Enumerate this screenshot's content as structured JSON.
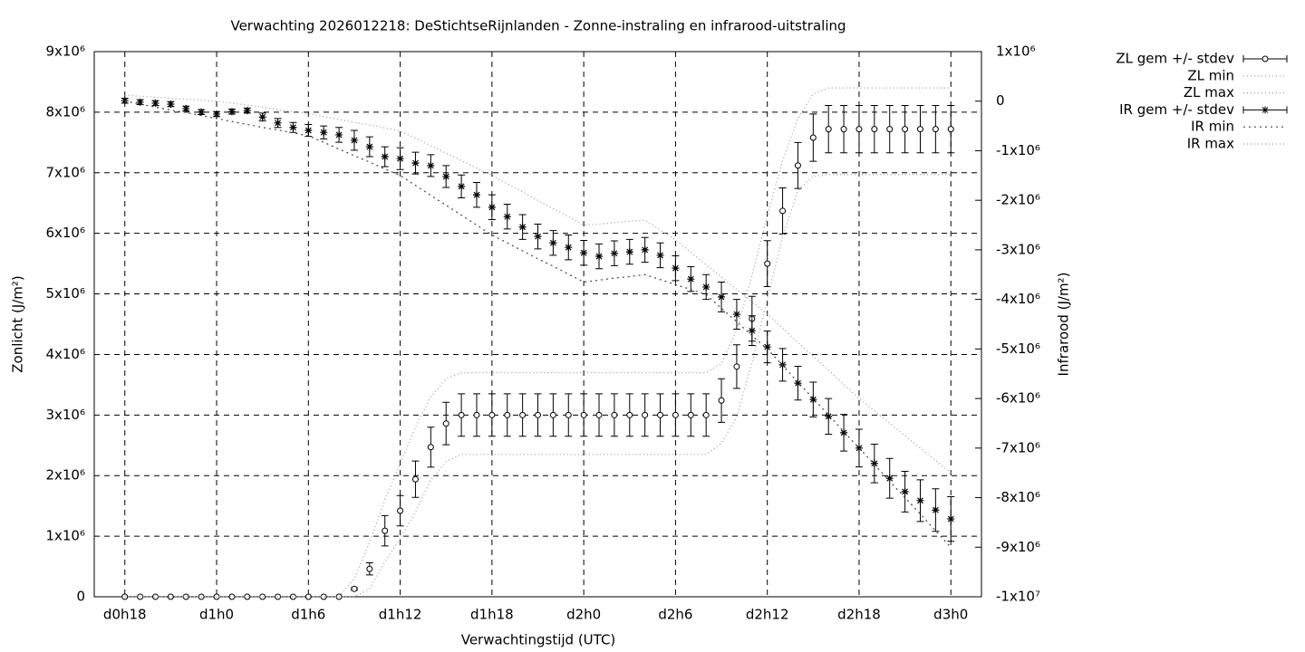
{
  "chart_data": {
    "type": "errorbar",
    "title": "Verwachting 2026012218: DeStichtseRijnlanden - Zonne-instraling en infrarood-uitstraling",
    "x_label": "Verwachtingstijd (UTC)",
    "y_label": "Zonlicht (J/m²)",
    "y2_label": "Infrarood (J/m²)",
    "x": [
      18,
      19,
      20,
      21,
      22,
      23,
      24,
      25,
      26,
      27,
      28,
      29,
      30,
      31,
      32,
      33,
      34,
      35,
      36,
      37,
      38,
      39,
      40,
      41,
      42,
      43,
      44,
      45,
      46,
      47,
      48,
      49,
      50,
      51,
      52,
      53,
      54,
      55,
      56,
      57,
      58,
      59,
      60,
      61,
      62,
      63,
      64,
      65,
      66,
      67,
      68,
      69,
      70,
      71,
      72
    ],
    "xlim": [
      16,
      74
    ],
    "xticks": [
      {
        "value": 18,
        "label": "d0h18"
      },
      {
        "value": 24,
        "label": "d1h0"
      },
      {
        "value": 30,
        "label": "d1h6"
      },
      {
        "value": 36,
        "label": "d1h12"
      },
      {
        "value": 42,
        "label": "d1h18"
      },
      {
        "value": 48,
        "label": "d2h0"
      },
      {
        "value": 54,
        "label": "d2h6"
      },
      {
        "value": 60,
        "label": "d2h12"
      },
      {
        "value": 66,
        "label": "d2h18"
      },
      {
        "value": 72,
        "label": "d3h0"
      }
    ],
    "ylim": [
      0,
      9000000.0
    ],
    "yticks": [
      0,
      {
        "value": 1000000.0,
        "label": "1x10⁶"
      },
      {
        "value": 2000000.0,
        "label": "2x10⁶"
      },
      {
        "value": 3000000.0,
        "label": "3x10⁶"
      },
      {
        "value": 4000000.0,
        "label": "4x10⁶"
      },
      {
        "value": 5000000.0,
        "label": "5x10⁶"
      },
      {
        "value": 6000000.0,
        "label": "6x10⁶"
      },
      {
        "value": 7000000.0,
        "label": "7x10⁶"
      },
      {
        "value": 8000000.0,
        "label": "8x10⁶"
      },
      {
        "value": 9000000.0,
        "label": "9x10⁶"
      }
    ],
    "y2lim": [
      -10000000.0,
      1000000.0
    ],
    "y2ticks": [
      {
        "value": -10000000.0,
        "label": "-1x10⁷"
      },
      {
        "value": -9000000.0,
        "label": "-9x10⁶"
      },
      {
        "value": -8000000.0,
        "label": "-8x10⁶"
      },
      {
        "value": -7000000.0,
        "label": "-7x10⁶"
      },
      {
        "value": -6000000.0,
        "label": "-6x10⁶"
      },
      {
        "value": -5000000.0,
        "label": "-5x10⁶"
      },
      {
        "value": -4000000.0,
        "label": "-4x10⁶"
      },
      {
        "value": -3000000.0,
        "label": "-3x10⁶"
      },
      {
        "value": -2000000.0,
        "label": "-2x10⁶"
      },
      {
        "value": -1000000.0,
        "label": "-1x10⁶"
      },
      0,
      {
        "value": 1000000.0,
        "label": "1x10⁶"
      }
    ],
    "grid": true,
    "legend": "outside-top-right",
    "series": [
      {
        "name": "ZL gem +/- stdev",
        "color": "#000000",
        "axis": "y",
        "marker": "circle",
        "values": [
          0,
          0,
          0,
          0,
          0,
          0,
          0,
          0,
          0,
          0,
          0,
          0,
          0,
          0,
          0,
          130000.0,
          460000.0,
          1090000.0,
          1420000.0,
          1940000.0,
          2470000.0,
          2860000.0,
          3000000.0,
          3000000.0,
          3000000.0,
          3000000.0,
          3000000.0,
          3000000.0,
          3000000.0,
          3000000.0,
          3000000.0,
          3000000.0,
          3000000.0,
          3000000.0,
          3000000.0,
          3000000.0,
          3000000.0,
          3000000.0,
          3000000.0,
          3240000.0,
          3800000.0,
          4590000.0,
          5500000.0,
          6370000.0,
          7120000.0,
          7580000.0,
          7720000.0,
          7720000.0,
          7720000.0,
          7720000.0,
          7720000.0,
          7720000.0,
          7720000.0,
          7720000.0,
          7720000.0
        ],
        "errors": [
          0,
          0,
          0,
          0,
          0,
          0,
          0,
          0,
          0,
          0,
          0,
          0,
          0,
          0,
          0,
          20000.0,
          100000.0,
          250000.0,
          250000.0,
          300000.0,
          330000.0,
          350000.0,
          350000.0,
          350000.0,
          350000.0,
          350000.0,
          350000.0,
          350000.0,
          350000.0,
          350000.0,
          350000.0,
          350000.0,
          350000.0,
          350000.0,
          350000.0,
          350000.0,
          350000.0,
          350000.0,
          350000.0,
          360000.0,
          360000.0,
          370000.0,
          380000.0,
          380000.0,
          380000.0,
          390000.0,
          390000.0,
          390000.0,
          390000.0,
          390000.0,
          390000.0,
          390000.0,
          390000.0,
          390000.0,
          390000.0
        ]
      },
      {
        "name": "ZL min",
        "color": "#999999",
        "axis": "y",
        "style": "dotted",
        "values": [
          0,
          0,
          0,
          0,
          0,
          0,
          0,
          0,
          0,
          0,
          0,
          0,
          0,
          0,
          0,
          0,
          130000.0,
          580000.0,
          960000.0,
          1400000.0,
          1930000.0,
          2230000.0,
          2350000.0,
          2350000.0,
          2350000.0,
          2350000.0,
          2350000.0,
          2350000.0,
          2350000.0,
          2350000.0,
          2350000.0,
          2350000.0,
          2350000.0,
          2350000.0,
          2350000.0,
          2350000.0,
          2350000.0,
          2350000.0,
          2350000.0,
          2530000.0,
          2970000.0,
          3870000.0,
          4920000.0,
          5940000.0,
          6710000.0,
          6940000.0,
          6970000.0,
          6970000.0,
          6970000.0,
          6970000.0,
          6970000.0,
          6970000.0,
          6970000.0,
          6970000.0,
          6970000.0
        ]
      },
      {
        "name": "ZL max",
        "color": "#999999",
        "axis": "y",
        "style": "dotted",
        "values": [
          0,
          0,
          0,
          0,
          0,
          0,
          0,
          0,
          0,
          0,
          0,
          0,
          0,
          0,
          0,
          300000.0,
          900000.0,
          1600000.0,
          2200000.0,
          2800000.0,
          3300000.0,
          3600000.0,
          3700000.0,
          3700000.0,
          3700000.0,
          3700000.0,
          3700000.0,
          3700000.0,
          3700000.0,
          3700000.0,
          3700000.0,
          3700000.0,
          3700000.0,
          3700000.0,
          3700000.0,
          3700000.0,
          3700000.0,
          3700000.0,
          3700000.0,
          3850000.0,
          4400000.0,
          5300000.0,
          6300000.0,
          7200000.0,
          7900000.0,
          8300000.0,
          8400000.0,
          8400000.0,
          8400000.0,
          8400000.0,
          8400000.0,
          8400000.0,
          8400000.0,
          8400000.0,
          8400000.0
        ]
      },
      {
        "name": "IR gem +/- stdev",
        "color": "#000000",
        "axis": "y2",
        "marker": "star",
        "values": [
          10000.0,
          -20000.0,
          -40000.0,
          -60000.0,
          -150000.0,
          -220000.0,
          -260000.0,
          -210000.0,
          -190000.0,
          -320000.0,
          -440000.0,
          -530000.0,
          -590000.0,
          -630000.0,
          -680000.0,
          -790000.0,
          -920000.0,
          -1120000.0,
          -1160000.0,
          -1250000.0,
          -1300000.0,
          -1520000.0,
          -1720000.0,
          -1890000.0,
          -2140000.0,
          -2330000.0,
          -2540000.0,
          -2730000.0,
          -2860000.0,
          -2950000.0,
          -3060000.0,
          -3130000.0,
          -3070000.0,
          -3040000.0,
          -3000000.0,
          -3110000.0,
          -3370000.0,
          -3590000.0,
          -3750000.0,
          -3950000.0,
          -4300000.0,
          -4630000.0,
          -4960000.0,
          -5320000.0,
          -5690000.0,
          -6020000.0,
          -6360000.0,
          -6690000.0,
          -7000000.0,
          -7310000.0,
          -7610000.0,
          -7880000.0,
          -8060000.0,
          -8250000.0,
          -8430000.0
        ],
        "errors": [
          50000.0,
          50000.0,
          50000.0,
          50000.0,
          50000.0,
          50000.0,
          50000.0,
          50000.0,
          50000.0,
          80000.0,
          90000.0,
          100000.0,
          120000.0,
          130000.0,
          150000.0,
          200000.0,
          200000.0,
          200000.0,
          220000.0,
          220000.0,
          220000.0,
          220000.0,
          230000.0,
          250000.0,
          250000.0,
          250000.0,
          250000.0,
          250000.0,
          250000.0,
          250000.0,
          250000.0,
          250000.0,
          250000.0,
          250000.0,
          250000.0,
          250000.0,
          250000.0,
          250000.0,
          250000.0,
          300000.0,
          300000.0,
          300000.0,
          320000.0,
          330000.0,
          340000.0,
          350000.0,
          360000.0,
          370000.0,
          380000.0,
          390000.0,
          400000.0,
          410000.0,
          420000.0,
          430000.0,
          450000.0
        ]
      },
      {
        "name": "IR min",
        "color": "#444444",
        "axis": "y2",
        "style": "dotted",
        "values": [
          0,
          -60000.0,
          -120000.0,
          -180000.0,
          -230000.0,
          -290000.0,
          -350000.0,
          -410000.0,
          -470000.0,
          -530000.0,
          -580000.0,
          -640000.0,
          -700000.0,
          -830000.0,
          -970000.0,
          -1100000.0,
          -1230000.0,
          -1370000.0,
          -1500000.0,
          -1700000.0,
          -1900000.0,
          -2100000.0,
          -2300000.0,
          -2500000.0,
          -2700000.0,
          -2860000.0,
          -3020000.0,
          -3180000.0,
          -3330000.0,
          -3490000.0,
          -3650000.0,
          -3610000.0,
          -3570000.0,
          -3540000.0,
          -3500000.0,
          -3600000.0,
          -3700000.0,
          -3800000.0,
          -3900000.0,
          -4180000.0,
          -4450000.0,
          -4730000.0,
          -5000000.0,
          -5330000.0,
          -5670000.0,
          -6000000.0,
          -6330000.0,
          -6670000.0,
          -7000000.0,
          -7330000.0,
          -7670000.0,
          -8000000.0,
          -8330000.0,
          -8670000.0,
          -9000000.0
        ]
      },
      {
        "name": "IR max",
        "color": "#999999",
        "axis": "y2",
        "style": "dotted",
        "values": [
          120000.0,
          100000.0,
          80000.0,
          60000.0,
          40000.0,
          20000.0,
          0,
          -40000.0,
          -80000.0,
          -120000.0,
          -170000.0,
          -210000.0,
          -250000.0,
          -310000.0,
          -370000.0,
          -430000.0,
          -480000.0,
          -540000.0,
          -600000.0,
          -750000.0,
          -900000.0,
          -1050000.0,
          -1200000.0,
          -1350000.0,
          -1500000.0,
          -1670000.0,
          -1830000.0,
          -2000000.0,
          -2170000.0,
          -2330000.0,
          -2500000.0,
          -2480000.0,
          -2450000.0,
          -2420000.0,
          -2400000.0,
          -2600000.0,
          -2800000.0,
          -3050000.0,
          -3300000.0,
          -3550000.0,
          -3800000.0,
          -4050000.0,
          -4300000.0,
          -4580000.0,
          -4870000.0,
          -5150000.0,
          -5430000.0,
          -5720000.0,
          -6000000.0,
          -6250000.0,
          -6500000.0,
          -6750000.0,
          -7000000.0,
          -7250000.0,
          -7500000.0
        ]
      }
    ]
  }
}
